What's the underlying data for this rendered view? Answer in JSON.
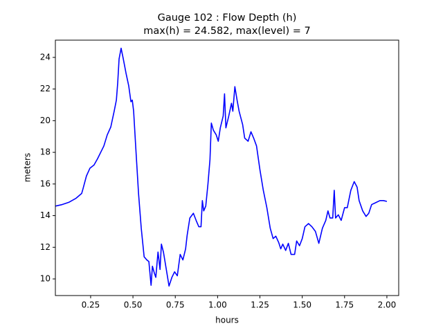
{
  "chart_data": {
    "type": "line",
    "title": "Gauge 102 : Flow Depth (h)",
    "subtitle": "max(h) =  24.582,    max(level) = 7",
    "x_label": "hours",
    "y_label": "meters",
    "xlim": [
      0.0417,
      2.0698
    ],
    "ylim": [
      8.95,
      25.09
    ],
    "xticks": [
      0.25,
      {
        "value": 0.5,
        "label": "0.50"
      },
      0.75,
      {
        "value": 1,
        "label": "1.00"
      },
      1.25,
      {
        "value": 1.5,
        "label": "1.50"
      },
      1.75,
      {
        "value": 2,
        "label": "2.00"
      }
    ],
    "yticks": [
      10,
      12,
      14,
      16,
      18,
      20,
      22,
      24
    ],
    "grid": false,
    "x": [
      0.041,
      0.082,
      0.123,
      0.164,
      0.197,
      0.205,
      0.225,
      0.246,
      0.27,
      0.291,
      0.328,
      0.348,
      0.369,
      0.389,
      0.402,
      0.41,
      0.418,
      0.43,
      0.443,
      0.459,
      0.475,
      0.488,
      0.496,
      0.504,
      0.516,
      0.533,
      0.549,
      0.566,
      0.582,
      0.594,
      0.607,
      0.615,
      0.627,
      0.635,
      0.648,
      0.66,
      0.668,
      0.68,
      0.697,
      0.713,
      0.73,
      0.746,
      0.762,
      0.779,
      0.795,
      0.811,
      0.82,
      0.836,
      0.857,
      0.873,
      0.889,
      0.902,
      0.91,
      0.918,
      0.93,
      0.943,
      0.955,
      0.963,
      0.975,
      0.992,
      1.004,
      1.016,
      1.033,
      1.041,
      1.049,
      1.066,
      1.082,
      1.09,
      1.102,
      1.115,
      1.127,
      1.148,
      1.16,
      1.18,
      1.197,
      1.213,
      1.23,
      1.25,
      1.27,
      1.291,
      1.311,
      1.328,
      1.344,
      1.361,
      1.373,
      1.385,
      1.402,
      1.418,
      1.434,
      1.455,
      1.467,
      1.484,
      1.5,
      1.516,
      1.537,
      1.557,
      1.578,
      1.598,
      1.619,
      1.639,
      1.652,
      1.664,
      1.68,
      1.689,
      1.697,
      1.713,
      1.73,
      1.75,
      1.766,
      1.787,
      1.807,
      1.824,
      1.836,
      1.857,
      1.877,
      1.893,
      1.91,
      1.93,
      1.959,
      1.98,
      2.0
    ],
    "series": [
      {
        "color": "#0000ff",
        "values": [
          14.6,
          14.7,
          14.85,
          15.1,
          15.4,
          15.7,
          16.5,
          17.0,
          17.2,
          17.6,
          18.4,
          19.1,
          19.6,
          20.6,
          21.3,
          22.4,
          23.9,
          24.58,
          23.9,
          23.0,
          22.2,
          21.2,
          21.3,
          20.6,
          18.4,
          15.4,
          13.2,
          11.4,
          11.2,
          11.1,
          9.6,
          10.8,
          10.35,
          10.1,
          11.7,
          10.6,
          12.2,
          11.7,
          10.6,
          9.55,
          10.1,
          10.45,
          10.2,
          11.55,
          11.2,
          11.9,
          12.75,
          13.85,
          14.15,
          13.7,
          13.3,
          13.3,
          14.95,
          14.3,
          14.6,
          16.0,
          17.55,
          19.85,
          19.4,
          19.1,
          18.7,
          19.55,
          20.3,
          21.7,
          19.55,
          20.3,
          21.1,
          20.6,
          22.15,
          21.3,
          20.6,
          19.75,
          18.9,
          18.7,
          19.3,
          18.9,
          18.4,
          16.9,
          15.6,
          14.5,
          13.2,
          12.55,
          12.7,
          12.3,
          11.9,
          12.2,
          11.8,
          12.25,
          11.55,
          11.55,
          12.4,
          12.1,
          12.55,
          13.3,
          13.5,
          13.3,
          13.0,
          12.25,
          13.2,
          13.7,
          14.3,
          13.85,
          13.85,
          15.6,
          13.85,
          14.05,
          13.7,
          14.5,
          14.5,
          15.6,
          16.15,
          15.8,
          14.95,
          14.3,
          13.95,
          14.15,
          14.7,
          14.8,
          14.95,
          14.95,
          14.9
        ]
      }
    ]
  }
}
